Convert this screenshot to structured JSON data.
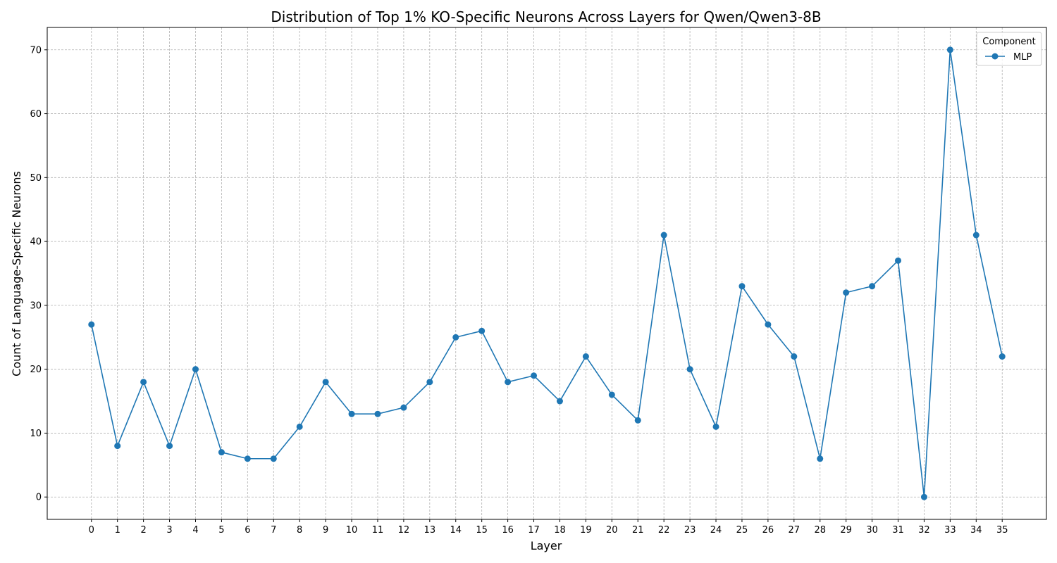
{
  "chart_data": {
    "type": "line",
    "title": "Distribution of Top 1% KO-Specific Neurons Across Layers for Qwen/Qwen3-8B",
    "xlabel": "Layer",
    "ylabel": "Count of Language-Specific Neurons",
    "x": [
      0,
      1,
      2,
      3,
      4,
      5,
      6,
      7,
      8,
      9,
      10,
      11,
      12,
      13,
      14,
      15,
      16,
      17,
      18,
      19,
      20,
      21,
      22,
      23,
      24,
      25,
      26,
      27,
      28,
      29,
      30,
      31,
      32,
      33,
      34,
      35
    ],
    "xticks": [
      "0",
      "1",
      "2",
      "3",
      "4",
      "5",
      "6",
      "7",
      "8",
      "9",
      "10",
      "11",
      "12",
      "13",
      "14",
      "15",
      "16",
      "17",
      "18",
      "19",
      "20",
      "21",
      "22",
      "23",
      "24",
      "25",
      "26",
      "27",
      "28",
      "29",
      "30",
      "31",
      "32",
      "33",
      "34",
      "35"
    ],
    "yticks": [
      0,
      10,
      20,
      30,
      40,
      50,
      60,
      70
    ],
    "xlim": [
      -1.7,
      36.7
    ],
    "ylim": [
      -3.5,
      73.5
    ],
    "grid": true,
    "legend": {
      "title": "Component",
      "placement": "top-right"
    },
    "series": [
      {
        "name": "MLP",
        "color": "#1f77b4",
        "values": [
          27,
          8,
          18,
          8,
          20,
          7,
          6,
          6,
          11,
          18,
          13,
          13,
          14,
          18,
          25,
          26,
          18,
          19,
          15,
          22,
          16,
          12,
          41,
          20,
          11,
          33,
          27,
          22,
          6,
          32,
          33,
          37,
          0,
          70,
          41,
          22
        ]
      }
    ]
  }
}
